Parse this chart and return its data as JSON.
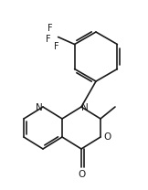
{
  "bg_color": "#ffffff",
  "line_color": "#1a1a1a",
  "lw": 1.2,
  "figsize": [
    1.62,
    2.08
  ],
  "dpi": 100,
  "xlim": [
    0,
    162
  ],
  "ylim": [
    0,
    208
  ]
}
